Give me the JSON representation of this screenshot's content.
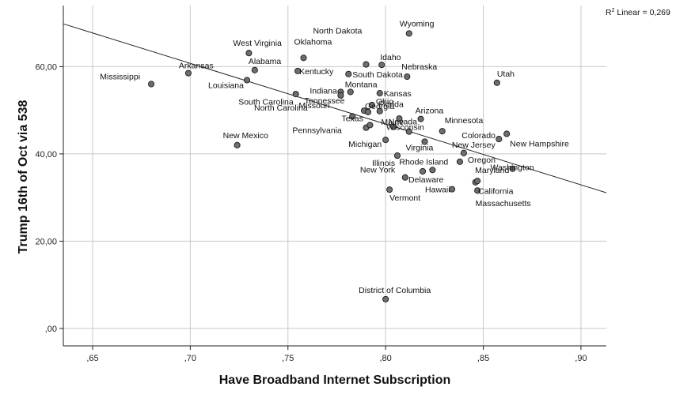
{
  "chart_data": {
    "type": "scatter",
    "xlabel": "Have Broadband Internet Subscription",
    "ylabel": "Trump 16th of Oct via 538",
    "xlim": [
      0.635,
      0.913
    ],
    "ylim": [
      -4,
      74
    ],
    "x_ticks": [
      {
        "value": 0.65,
        "label": ",65"
      },
      {
        "value": 0.7,
        "label": ",70"
      },
      {
        "value": 0.75,
        "label": ",75"
      },
      {
        "value": 0.8,
        "label": ",80"
      },
      {
        "value": 0.85,
        "label": ",85"
      },
      {
        "value": 0.9,
        "label": ",90"
      }
    ],
    "y_ticks": [
      {
        "value": 0,
        "label": ",00"
      },
      {
        "value": 20,
        "label": "20,00"
      },
      {
        "value": 40,
        "label": "40,00"
      },
      {
        "value": 60,
        "label": "60,00"
      }
    ],
    "grid": true,
    "r2_label": "Linear = 0,269",
    "fit_line": {
      "x1": 0.635,
      "y1": 69.8,
      "x2": 0.913,
      "y2": 31.1
    },
    "points": [
      {
        "name": "Mississippi",
        "x": 0.68,
        "y": 56.0
      },
      {
        "name": "Arkansas",
        "x": 0.699,
        "y": 58.5
      },
      {
        "name": "New Mexico",
        "x": 0.724,
        "y": 42.0
      },
      {
        "name": "Louisiana",
        "x": 0.729,
        "y": 56.9
      },
      {
        "name": "West Virginia",
        "x": 0.73,
        "y": 63.1
      },
      {
        "name": "Alabama",
        "x": 0.733,
        "y": 59.2
      },
      {
        "name": "Tennessee",
        "x": 0.754,
        "y": 53.7
      },
      {
        "name": "Kentucky",
        "x": 0.755,
        "y": 59.0
      },
      {
        "name": "Oklahoma",
        "x": 0.758,
        "y": 62.0
      },
      {
        "name": "Indiana",
        "x": 0.777,
        "y": 54.2
      },
      {
        "name": "Missouri",
        "x": 0.777,
        "y": 53.4
      },
      {
        "name": "South Dakota",
        "x": 0.781,
        "y": 58.3
      },
      {
        "name": "Montana",
        "x": 0.782,
        "y": 54.2
      },
      {
        "name": "South Carolina",
        "x": 0.783,
        "y": 48.6
      },
      {
        "name": "North Carolina",
        "x": 0.789,
        "y": 49.9
      },
      {
        "name": "Texas",
        "x": 0.79,
        "y": 46.0
      },
      {
        "name": "North Dakota",
        "x": 0.79,
        "y": 60.5
      },
      {
        "name": "Georgia",
        "x": 0.791,
        "y": 49.6
      },
      {
        "name": "Pennsylvania",
        "x": 0.792,
        "y": 46.6
      },
      {
        "name": "Ohio",
        "x": 0.793,
        "y": 51.2
      },
      {
        "name": "Florida",
        "x": 0.797,
        "y": 49.8
      },
      {
        "name": "Kansas",
        "x": 0.797,
        "y": 53.9
      },
      {
        "name": "Idaho",
        "x": 0.798,
        "y": 60.4
      },
      {
        "name": "Michigan",
        "x": 0.8,
        "y": 43.2
      },
      {
        "name": "Vermont",
        "x": 0.802,
        "y": 31.8
      },
      {
        "name": "Wisconsin",
        "x": 0.804,
        "y": 46.2
      },
      {
        "name": "Illinois",
        "x": 0.806,
        "y": 39.6
      },
      {
        "name": "Maine",
        "x": 0.807,
        "y": 48.1
      },
      {
        "name": "New York",
        "x": 0.81,
        "y": 34.6
      },
      {
        "name": "Nebraska",
        "x": 0.811,
        "y": 57.7
      },
      {
        "name": "Wyoming",
        "x": 0.812,
        "y": 67.6
      },
      {
        "name": "Nevada",
        "x": 0.812,
        "y": 45.1
      },
      {
        "name": "Virginia",
        "x": 0.82,
        "y": 42.8
      },
      {
        "name": "Delaware",
        "x": 0.819,
        "y": 36.0
      },
      {
        "name": "Arizona",
        "x": 0.818,
        "y": 48.0
      },
      {
        "name": "Rhode Island",
        "x": 0.824,
        "y": 36.3
      },
      {
        "name": "Minnesota",
        "x": 0.829,
        "y": 45.2
      },
      {
        "name": "Hawaii",
        "x": 0.834,
        "y": 31.9
      },
      {
        "name": "Oregon",
        "x": 0.838,
        "y": 38.2
      },
      {
        "name": "New Jersey",
        "x": 0.84,
        "y": 40.2
      },
      {
        "name": "Massachusetts",
        "x": 0.846,
        "y": 33.5
      },
      {
        "name": "Maryland",
        "x": 0.847,
        "y": 33.8
      },
      {
        "name": "California",
        "x": 0.847,
        "y": 31.6
      },
      {
        "name": "Utah",
        "x": 0.857,
        "y": 56.3
      },
      {
        "name": "Colorado",
        "x": 0.858,
        "y": 43.4
      },
      {
        "name": "New Hampshire",
        "x": 0.862,
        "y": 44.6
      },
      {
        "name": "Washington",
        "x": 0.865,
        "y": 36.6
      },
      {
        "name": "District of Columbia",
        "x": 0.8,
        "y": 6.7
      }
    ],
    "label_offsets": {
      "Mississippi": [
        -14,
        -6,
        "end"
      ],
      "Arkansas": [
        -12,
        -6,
        "start"
      ],
      "New Mexico": [
        -18,
        -9,
        "start"
      ],
      "Louisiana": [
        -4,
        10,
        "end"
      ],
      "West Virginia": [
        -20,
        -9,
        "start"
      ],
      "Alabama": [
        -8,
        -8,
        "start"
      ],
      "Tennessee": [
        11,
        12,
        "start"
      ],
      "Kentucky": [
        2,
        4,
        "start"
      ],
      "Oklahoma": [
        -12,
        -17,
        "start"
      ],
      "Indiana": [
        -39,
        2,
        "start"
      ],
      "Missouri": [
        -53,
        16,
        "start"
      ],
      "South Dakota": [
        5,
        4,
        "start"
      ],
      "Montana": [
        -7,
        -6,
        "start"
      ],
      "South Carolina": [
        -144,
        -15,
        "start"
      ],
      "North Carolina": [
        -139,
        0,
        "start"
      ],
      "Texas": [
        -31,
        -8,
        "start"
      ],
      "North Dakota": [
        -67,
        -39,
        "start"
      ],
      "Georgia": [
        -4,
        -4,
        "start"
      ],
      "Pennsylvania": [
        -98,
        10,
        "start"
      ],
      "Ohio": [
        5,
        -1,
        "start"
      ],
      "Florida": [
        -2,
        -5,
        "start"
      ],
      "Kansas": [
        5,
        4,
        "start"
      ],
      "Idaho": [
        -2,
        -6,
        "start"
      ],
      "Michigan": [
        -47,
        9,
        "start"
      ],
      "Vermont": [
        0,
        14,
        "start"
      ],
      "Wisconsin": [
        -9,
        4,
        "start"
      ],
      "Illinois": [
        -32,
        13,
        "start"
      ],
      "Maine": [
        -23,
        8,
        "start"
      ],
      "New York": [
        -57,
        -6,
        "start"
      ],
      "Nebraska": [
        -7,
        -9,
        "start"
      ],
      "Wyoming": [
        -12,
        -9,
        "start"
      ],
      "Nevada": [
        -26,
        -9,
        "start"
      ],
      "Virginia": [
        -24,
        11,
        "start"
      ],
      "Delaware": [
        -18,
        14,
        "start"
      ],
      "Arizona": [
        -7,
        -7,
        "start"
      ],
      "Rhode Island": [
        -42,
        -7,
        "start"
      ],
      "Minnesota": [
        3,
        -10,
        "start"
      ],
      "Hawaii": [
        -34,
        4,
        "start"
      ],
      "Oregon": [
        10,
        1,
        "start"
      ],
      "New Jersey": [
        -15,
        -7,
        "start"
      ],
      "Massachusetts": [
        0,
        30,
        "start"
      ],
      "Maryland": [
        -3,
        -10,
        "start"
      ],
      "California": [
        1,
        4,
        "start"
      ],
      "Utah": [
        0,
        -8,
        "start"
      ],
      "Colorado": [
        -47,
        -1,
        "start"
      ],
      "New Hampshire": [
        4,
        16,
        "start"
      ],
      "Washington": [
        -28,
        2,
        "start"
      ],
      "District of Columbia": [
        -34,
        -8,
        "start"
      ]
    }
  }
}
